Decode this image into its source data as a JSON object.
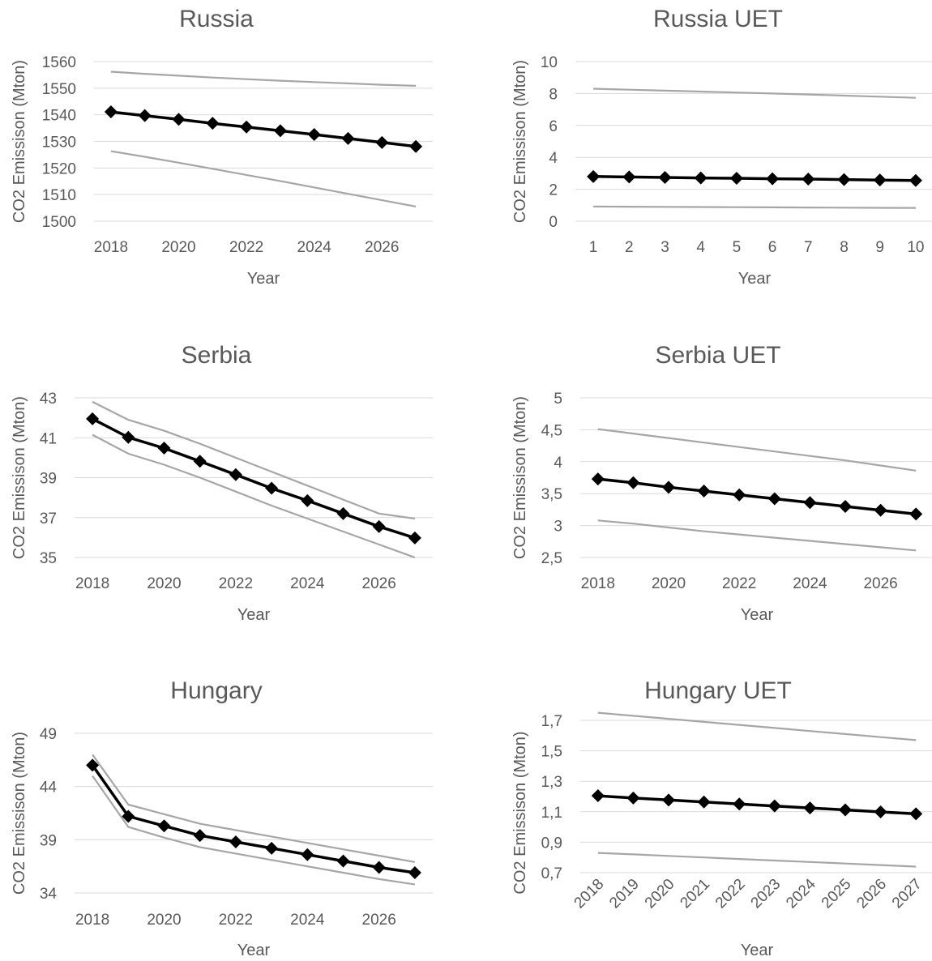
{
  "chart_data": [
    {
      "type": "line",
      "title": "Russia",
      "xlabel": "Year",
      "ylabel": "CO2 Emissison (Mton)",
      "x": [
        2018,
        2019,
        2020,
        2021,
        2022,
        2023,
        2024,
        2025,
        2026,
        2027
      ],
      "x_tick_labels": [
        "2018",
        "2020",
        "2022",
        "2024",
        "2026"
      ],
      "ylim": [
        1500,
        1560
      ],
      "y_tick_labels": [
        "1500",
        "1510",
        "1520",
        "1530",
        "1540",
        "1550",
        "1560"
      ],
      "grid": true,
      "series": [
        {
          "values": [
            1556.2,
            1555.4,
            1554.7,
            1554.0,
            1553.4,
            1552.8,
            1552.3,
            1551.8,
            1551.3,
            1550.9
          ]
        },
        {
          "values": [
            1541.1,
            1539.7,
            1538.3,
            1536.8,
            1535.4,
            1534.0,
            1532.6,
            1531.1,
            1529.6,
            1528.1
          ]
        },
        {
          "values": [
            1526.3,
            1524.2,
            1522.0,
            1519.7,
            1517.4,
            1515.1,
            1512.7,
            1510.3,
            1507.9,
            1505.5
          ]
        }
      ]
    },
    {
      "type": "line",
      "title": "Russia UET",
      "xlabel": "Year",
      "ylabel": "CO2 Emissison (Mton)",
      "x": [
        1,
        2,
        3,
        4,
        5,
        6,
        7,
        8,
        9,
        10
      ],
      "x_tick_labels": [
        "1",
        "2",
        "3",
        "4",
        "5",
        "6",
        "7",
        "8",
        "9",
        "10"
      ],
      "ylim": [
        0,
        10
      ],
      "y_tick_labels": [
        "0",
        "2",
        "4",
        "6",
        "8",
        "10"
      ],
      "grid": true,
      "series": [
        {
          "values": [
            8.3,
            8.24,
            8.18,
            8.12,
            8.06,
            8.0,
            7.94,
            7.87,
            7.8,
            7.73
          ]
        },
        {
          "values": [
            2.8,
            2.77,
            2.74,
            2.71,
            2.69,
            2.66,
            2.64,
            2.61,
            2.58,
            2.55
          ]
        },
        {
          "values": [
            0.92,
            0.91,
            0.9,
            0.89,
            0.88,
            0.87,
            0.86,
            0.85,
            0.84,
            0.83
          ]
        }
      ]
    },
    {
      "type": "line",
      "title": "Serbia",
      "xlabel": "Year",
      "ylabel": "CO2 Emissison (Mton)",
      "x": [
        2018,
        2019,
        2020,
        2021,
        2022,
        2023,
        2024,
        2025,
        2026,
        2027
      ],
      "x_tick_labels": [
        "2018",
        "2020",
        "2022",
        "2024",
        "2026"
      ],
      "ylim": [
        35,
        43
      ],
      "y_tick_labels": [
        "35",
        "37",
        "39",
        "41",
        "43"
      ],
      "grid": true,
      "series": [
        {
          "values": [
            42.8,
            41.9,
            41.35,
            40.7,
            40.0,
            39.3,
            38.6,
            37.9,
            37.2,
            36.95
          ]
        },
        {
          "values": [
            41.95,
            41.02,
            40.48,
            39.82,
            39.15,
            38.47,
            37.85,
            37.2,
            36.55,
            35.98
          ]
        },
        {
          "values": [
            41.15,
            40.2,
            39.65,
            39.0,
            38.3,
            37.6,
            36.95,
            36.3,
            35.65,
            35.0
          ]
        }
      ]
    },
    {
      "type": "line",
      "title": "Serbia UET",
      "xlabel": "Year",
      "ylabel": "CO2 Emissison (Mton)",
      "x": [
        2018,
        2019,
        2020,
        2021,
        2022,
        2023,
        2024,
        2025,
        2026,
        2027
      ],
      "x_tick_labels": [
        "2018",
        "2020",
        "2022",
        "2024",
        "2026"
      ],
      "ylim": [
        2.5,
        5
      ],
      "y_tick_labels": [
        "2,5",
        "3",
        "3,5",
        "4",
        "4,5",
        "5"
      ],
      "grid": true,
      "series": [
        {
          "values": [
            4.51,
            4.44,
            4.37,
            4.3,
            4.23,
            4.16,
            4.09,
            4.02,
            3.94,
            3.86
          ]
        },
        {
          "values": [
            3.73,
            3.67,
            3.6,
            3.54,
            3.48,
            3.42,
            3.36,
            3.3,
            3.24,
            3.18
          ]
        },
        {
          "values": [
            3.08,
            3.03,
            2.97,
            2.91,
            2.86,
            2.81,
            2.76,
            2.71,
            2.66,
            2.61
          ]
        }
      ]
    },
    {
      "type": "line",
      "title": "Hungary",
      "xlabel": "Year",
      "ylabel": "CO2 Emissison (Mton)",
      "x": [
        2018,
        2019,
        2020,
        2021,
        2022,
        2023,
        2024,
        2025,
        2026,
        2027
      ],
      "x_tick_labels": [
        "2018",
        "2020",
        "2022",
        "2024",
        "2026"
      ],
      "ylim": [
        34,
        49
      ],
      "y_tick_labels": [
        "34",
        "39",
        "44",
        "49"
      ],
      "grid": true,
      "series": [
        {
          "values": [
            47.0,
            42.3,
            41.4,
            40.5,
            39.9,
            39.3,
            38.7,
            38.1,
            37.5,
            36.9
          ]
        },
        {
          "values": [
            46.0,
            41.2,
            40.3,
            39.4,
            38.8,
            38.2,
            37.6,
            37.0,
            36.4,
            35.9
          ]
        },
        {
          "values": [
            45.0,
            40.2,
            39.2,
            38.3,
            37.7,
            37.1,
            36.5,
            35.9,
            35.3,
            34.8
          ]
        }
      ]
    },
    {
      "type": "line",
      "title": "Hungary UET",
      "xlabel": "Year",
      "ylabel": "CO2 Emissison (Mton)",
      "x": [
        2018,
        2019,
        2020,
        2021,
        2022,
        2023,
        2024,
        2025,
        2026,
        2027
      ],
      "x_tick_labels": [
        "2018",
        "2019",
        "2020",
        "2021",
        "2022",
        "2023",
        "2024",
        "2025",
        "2026",
        "2027"
      ],
      "x_tick_rotation": -45,
      "ylim": [
        0.7,
        1.7
      ],
      "y_tick_labels": [
        "0,7",
        "0,9",
        "1,1",
        "1,3",
        "1,5",
        "1,7"
      ],
      "grid": true,
      "series": [
        {
          "values": [
            1.75,
            1.73,
            1.71,
            1.69,
            1.67,
            1.65,
            1.63,
            1.61,
            1.59,
            1.57
          ]
        },
        {
          "values": [
            1.205,
            1.19,
            1.177,
            1.164,
            1.151,
            1.138,
            1.125,
            1.112,
            1.099,
            1.086
          ]
        },
        {
          "values": [
            0.83,
            0.82,
            0.81,
            0.8,
            0.79,
            0.78,
            0.77,
            0.76,
            0.75,
            0.74
          ]
        }
      ]
    }
  ]
}
